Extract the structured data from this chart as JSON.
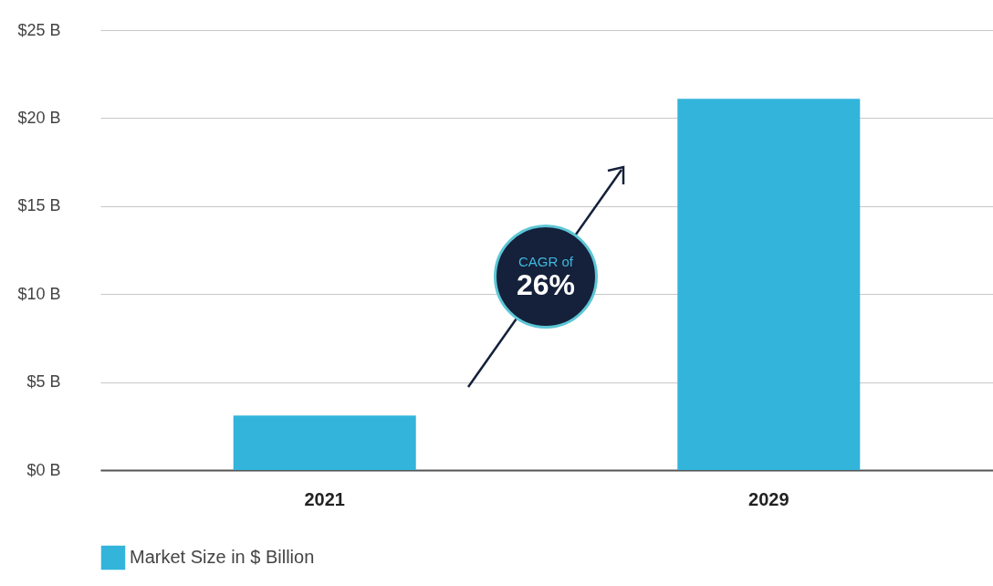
{
  "chart_data": {
    "type": "bar",
    "categories": [
      "2021",
      "2029"
    ],
    "series": [
      {
        "name": "Market Size in $ Billion",
        "color": "#33b4db",
        "values": [
          3.1,
          21.1
        ]
      }
    ],
    "ylim": [
      0,
      25
    ],
    "yticks": [
      {
        "value": 0,
        "label": "$0 B"
      },
      {
        "value": 5,
        "label": "$5 B"
      },
      {
        "value": 10,
        "label": "$10 B"
      },
      {
        "value": 15,
        "label": "$15 B"
      },
      {
        "value": 20,
        "label": "$20 B"
      },
      {
        "value": 25,
        "label": "$25 B"
      }
    ],
    "grid": "y",
    "legend": "bottom",
    "annotations": [
      "CAGR of",
      "26%"
    ]
  }
}
